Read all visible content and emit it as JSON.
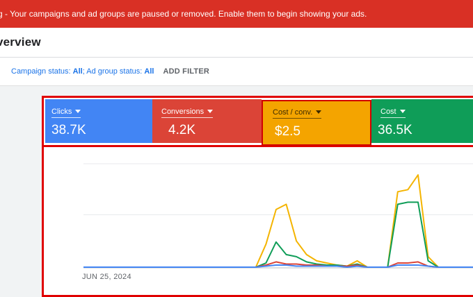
{
  "banner": {
    "text": "g - Your campaigns and ad groups are paused or removed. Enable them to begin showing your ads."
  },
  "header": {
    "title": "verview"
  },
  "filters": {
    "campaign_label": "Campaign status: ",
    "campaign_value": "All",
    "separator": "; ",
    "adgroup_label": "Ad group status: ",
    "adgroup_value": "All",
    "add_filter": "ADD FILTER"
  },
  "metrics": [
    {
      "label": "Clicks",
      "value": "38.7K",
      "color": "#4285f4"
    },
    {
      "label": "Conversions",
      "value": "4.2K",
      "color": "#db4437"
    },
    {
      "label": "Cost / conv.",
      "value": "$2.5",
      "color": "#f4a400"
    },
    {
      "label": "Cost",
      "value": "36.5K",
      "color": "#0f9d58"
    }
  ],
  "chart": {
    "x_label": "JUN 25, 2024"
  },
  "chart_data": {
    "type": "line",
    "x": [
      0,
      1,
      2,
      3,
      4,
      5,
      6,
      7,
      8,
      9,
      10,
      11,
      12,
      13,
      14,
      15,
      16,
      17,
      18,
      19,
      20,
      21,
      22,
      23,
      24,
      25,
      26,
      27,
      28,
      29,
      30,
      31,
      32,
      33,
      34,
      35,
      36,
      37,
      38,
      39,
      40
    ],
    "series": [
      {
        "color": "#f4b400",
        "values": [
          0,
          0,
          0,
          0,
          0,
          0,
          0,
          0,
          0,
          0,
          0,
          0,
          0,
          0,
          0,
          0,
          0,
          0,
          22,
          55,
          60,
          25,
          12,
          6,
          4,
          2,
          1,
          6,
          0,
          0,
          0,
          72,
          74,
          88,
          10,
          0,
          0,
          0,
          0,
          0,
          72
        ]
      },
      {
        "color": "#0f9d58",
        "values": [
          0,
          0,
          0,
          0,
          0,
          0,
          0,
          0,
          0,
          0,
          0,
          0,
          0,
          0,
          0,
          0,
          0,
          0,
          4,
          24,
          12,
          10,
          5,
          3,
          2,
          2,
          1,
          3,
          0,
          0,
          0,
          60,
          62,
          62,
          6,
          0,
          0,
          0,
          0,
          0,
          62
        ]
      },
      {
        "color": "#db4437",
        "values": [
          0,
          0,
          0,
          0,
          0,
          0,
          0,
          0,
          0,
          0,
          0,
          0,
          0,
          0,
          0,
          0,
          0,
          0,
          2,
          5,
          3,
          3,
          2,
          2,
          1,
          1,
          1,
          2,
          0,
          0,
          0,
          4,
          4,
          5,
          1,
          0,
          0,
          0,
          0,
          0,
          6
        ]
      },
      {
        "color": "#4285f4",
        "values": [
          0,
          0,
          0,
          0,
          0,
          0,
          0,
          0,
          0,
          0,
          0,
          0,
          0,
          0,
          0,
          0,
          0,
          0,
          1,
          2,
          2,
          1,
          1,
          1,
          1,
          1,
          0,
          1,
          0,
          0,
          0,
          2,
          2,
          2,
          1,
          0,
          0,
          0,
          0,
          0,
          2
        ]
      }
    ],
    "ylim": [
      0,
      100
    ],
    "grid": true
  }
}
